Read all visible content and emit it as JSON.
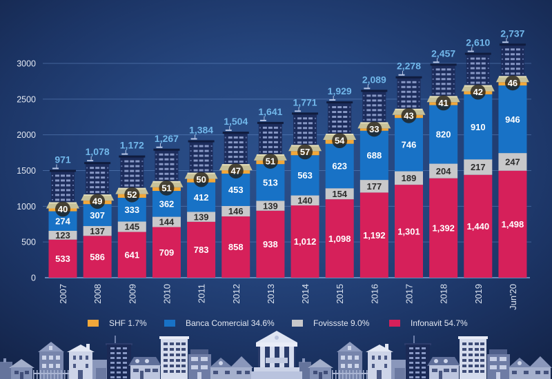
{
  "chart_data": {
    "type": "bar",
    "stacked": true,
    "title": "",
    "xlabel": "",
    "ylabel": "",
    "categories": [
      "2007",
      "2008",
      "2009",
      "2010",
      "2011",
      "2012",
      "2013",
      "2014",
      "2015",
      "2016",
      "2017",
      "2018",
      "2019",
      "Jun'20"
    ],
    "ylim": [
      0,
      3000
    ],
    "yticks": [
      0,
      500,
      1000,
      1500,
      2000,
      2500,
      3000
    ],
    "grid": true,
    "legend_position": "bottom",
    "series": [
      {
        "name": "Infonavit",
        "legend_label": "Infonavit 54.7%",
        "share_pct": 54.7,
        "color": "#d6205a",
        "label_color": "#ffffff",
        "values": [
          533,
          586,
          641,
          709,
          783,
          858,
          938,
          1012,
          1098,
          1192,
          1301,
          1392,
          1440,
          1498
        ],
        "labels": [
          "533",
          "586",
          "641",
          "709",
          "783",
          "858",
          "938",
          "1,012",
          "1,098",
          "1,192",
          "1,301",
          "1,392",
          "1,440",
          "1,498"
        ]
      },
      {
        "name": "Fovissste",
        "legend_label": "Fovissste 9.0%",
        "share_pct": 9.0,
        "color": "#c8c8ca",
        "label_color": "#2b2b2b",
        "values": [
          123,
          137,
          145,
          144,
          139,
          146,
          139,
          140,
          154,
          177,
          189,
          204,
          217,
          247
        ],
        "labels": [
          "123",
          "137",
          "145",
          "144",
          "139",
          "146",
          "139",
          "140",
          "154",
          "177",
          "189",
          "204",
          "217",
          "247"
        ]
      },
      {
        "name": "Banca Comercial",
        "legend_label": "Banca Comercial 34.6%",
        "share_pct": 34.6,
        "color": "#1872c6",
        "label_color": "#ffffff",
        "values": [
          274,
          307,
          333,
          362,
          412,
          453,
          513,
          563,
          623,
          688,
          746,
          820,
          910,
          946
        ],
        "labels": [
          "274",
          "307",
          "333",
          "362",
          "412",
          "453",
          "513",
          "563",
          "623",
          "688",
          "746",
          "820",
          "910",
          "946"
        ]
      },
      {
        "name": "SHF",
        "legend_label": "SHF 1.7%",
        "share_pct": 1.7,
        "color": "#f2a83a",
        "label_color": "#ffffff",
        "values": [
          40,
          49,
          52,
          51,
          50,
          47,
          51,
          57,
          54,
          33,
          43,
          41,
          42,
          46
        ],
        "labels": [
          "40",
          "49",
          "52",
          "51",
          "50",
          "47",
          "51",
          "57",
          "54",
          "33",
          "43",
          "41",
          "42",
          "46"
        ]
      }
    ],
    "totals": [
      971,
      1078,
      1172,
      1267,
      1384,
      1504,
      1641,
      1771,
      1929,
      2089,
      2278,
      2457,
      2610,
      2737
    ],
    "total_labels": [
      "971",
      "1,078",
      "1,172",
      "1,267",
      "1,384",
      "1,504",
      "1,641",
      "1,771",
      "1,929",
      "2,089",
      "2,278",
      "2,457",
      "2,610",
      "2,737"
    ],
    "total_label_color": "#71b7ea"
  }
}
